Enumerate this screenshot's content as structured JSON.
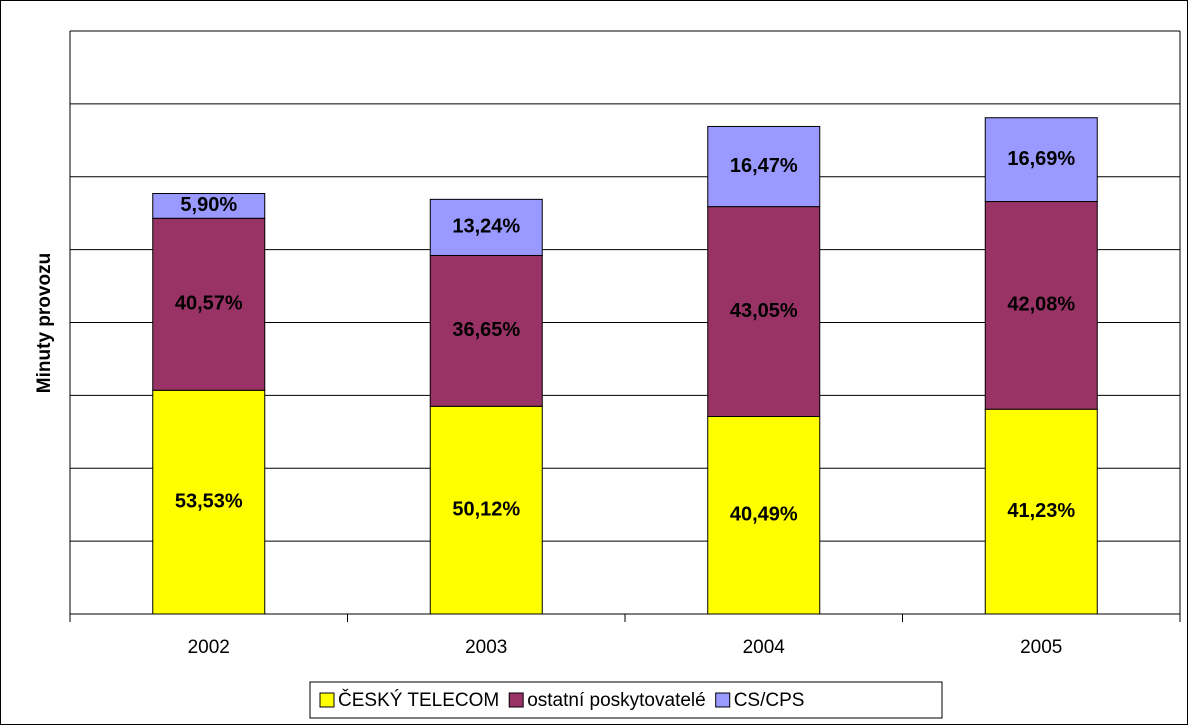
{
  "chart_data": {
    "type": "stacked_bar",
    "y_label": "Minuty provozu",
    "categories": [
      "2002",
      "2003",
      "2004",
      "2005"
    ],
    "series": [
      {
        "name": "ČESKÝ TELECOM",
        "color": "#ffff00",
        "values": [
          3.07,
          2.85,
          2.71,
          2.81
        ],
        "value_labels": [
          "53,53%",
          "50,12%",
          "40,49%",
          "41,23%"
        ]
      },
      {
        "name": "ostatní poskytovatelé",
        "color": "#993366",
        "values": [
          2.36,
          2.07,
          2.88,
          2.85
        ],
        "value_labels": [
          "40,57%",
          "36,65%",
          "43,05%",
          "42,08%"
        ]
      },
      {
        "name": "CS/CPS",
        "color": "#9999ff",
        "values": [
          0.34,
          0.77,
          1.1,
          1.15
        ],
        "value_labels": [
          "5,90%",
          "13,24%",
          "16,47%",
          "16,69%"
        ]
      }
    ],
    "ylim": [
      0,
      8
    ],
    "yticks": [
      0,
      1,
      2,
      3,
      4,
      5,
      6,
      7,
      8
    ],
    "grid": true
  }
}
